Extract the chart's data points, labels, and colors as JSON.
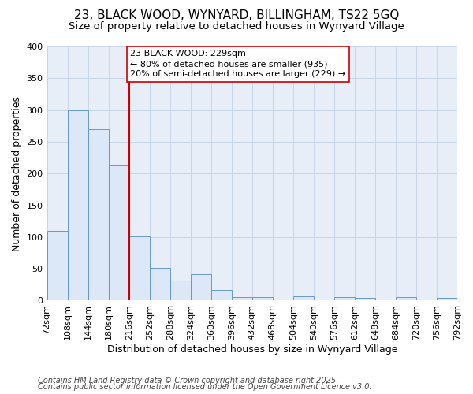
{
  "title_line1": "23, BLACK WOOD, WYNYARD, BILLINGHAM, TS22 5GQ",
  "title_line2": "Size of property relative to detached houses in Wynyard Village",
  "xlabel": "Distribution of detached houses by size in Wynyard Village",
  "ylabel": "Number of detached properties",
  "bins": [
    72,
    108,
    144,
    180,
    216,
    252,
    288,
    324,
    360,
    396,
    432,
    468,
    504,
    540,
    576,
    612,
    648,
    684,
    720,
    756,
    792
  ],
  "counts": [
    110,
    300,
    270,
    213,
    101,
    51,
    31,
    41,
    17,
    6,
    6,
    0,
    7,
    0,
    6,
    4,
    0,
    5,
    0,
    4
  ],
  "bar_color": "#dce8f8",
  "bar_edge_color": "#6699cc",
  "vline_x": 216,
  "vline_color": "#cc0000",
  "annotation_line1": "23 BLACK WOOD: 229sqm",
  "annotation_line2": "← 80% of detached houses are smaller (935)",
  "annotation_line3": "20% of semi-detached houses are larger (229) →",
  "annotation_box_color": "#ffffff",
  "annotation_box_edge": "#cc0000",
  "ylim": [
    0,
    400
  ],
  "yticks": [
    0,
    50,
    100,
    150,
    200,
    250,
    300,
    350,
    400
  ],
  "fig_bg": "#ffffff",
  "plot_bg": "#e8eef8",
  "grid_color": "#c8d4e8",
  "footer_line1": "Contains HM Land Registry data © Crown copyright and database right 2025.",
  "footer_line2": "Contains public sector information licensed under the Open Government Licence v3.0.",
  "title_fontsize": 11,
  "subtitle_fontsize": 9.5,
  "label_fontsize": 9,
  "tick_fontsize": 8,
  "annot_fontsize": 8,
  "footer_fontsize": 7
}
